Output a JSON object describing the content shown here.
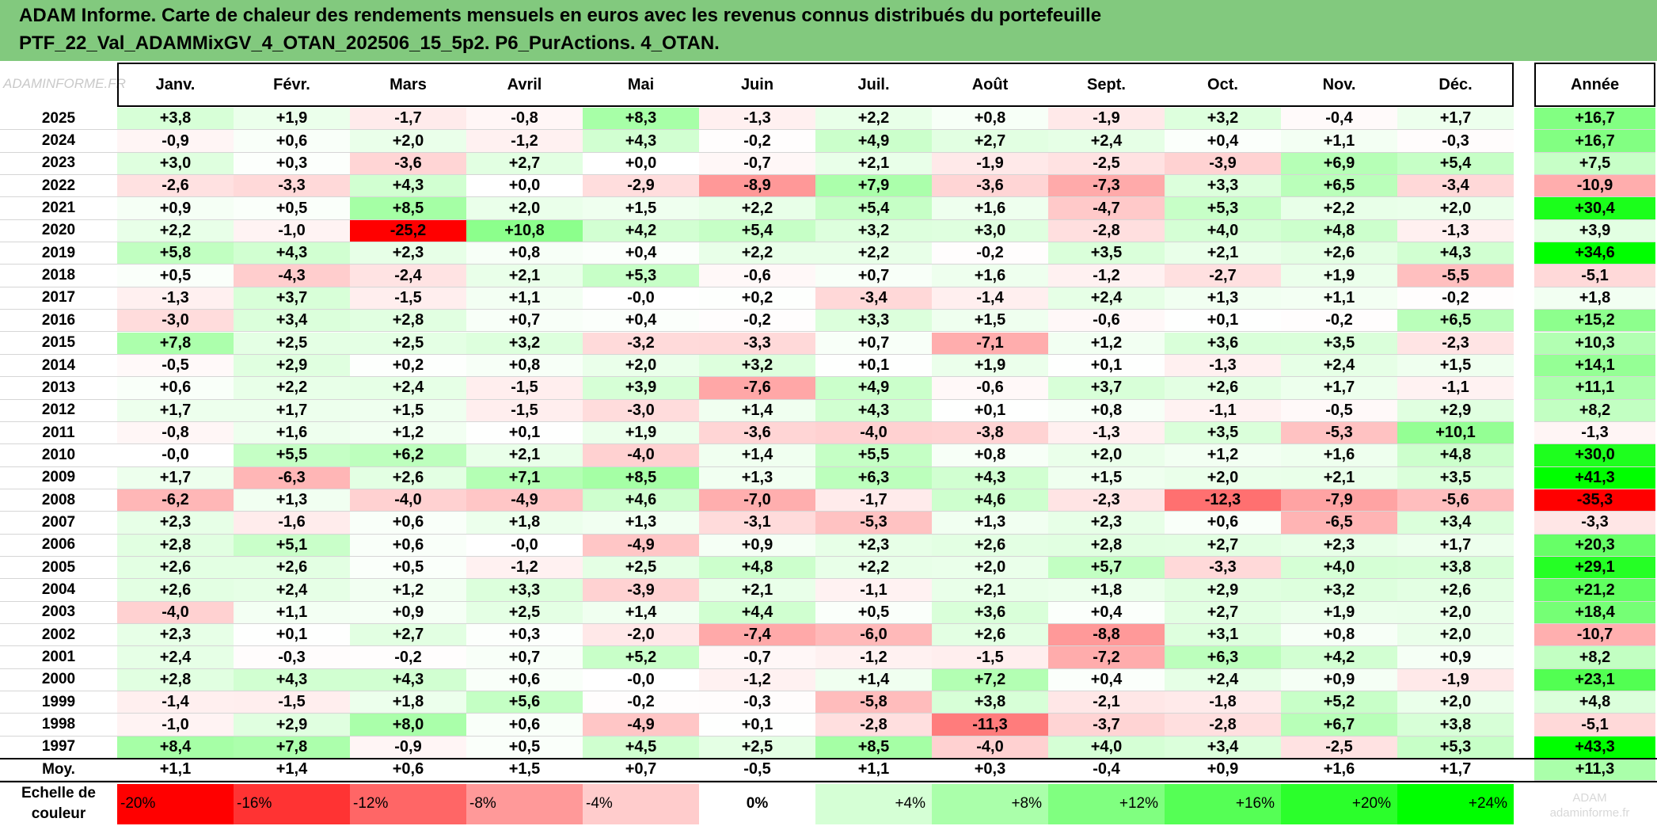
{
  "title": {
    "line1": "ADAM Informe. Carte de chaleur des rendements mensuels en euros avec les revenus connus distribués du portefeuille",
    "line2": "PTF_22_Val_ADAMMixGV_4_OTAN_202506_15_5p2. P6_PurActions. 4_OTAN."
  },
  "watermark": "ADAMINFORME.FR",
  "watermark2": "ADAM\nadaminforme.fr",
  "chart_data": {
    "type": "heatmap",
    "title": "ADAM Informe. Carte de chaleur des rendements mensuels en euros avec les revenus connus distribués du portefeuille PTF_22_Val_ADAMMixGV_4_OTAN_202506_15_5p2. P6_PurActions. 4_OTAN.",
    "columns": [
      "Janv.",
      "Févr.",
      "Mars",
      "Avril",
      "Mai",
      "Juin",
      "Juil.",
      "Août",
      "Sept.",
      "Oct.",
      "Nov.",
      "Déc."
    ],
    "annual_column": "Année",
    "rows": [
      {
        "year": "2025",
        "values": [
          "+3,8",
          "+1,9",
          "-1,7",
          "-0,8",
          "+8,3",
          "-1,3",
          "+2,2",
          "+0,8",
          "-1,9",
          "+3,2",
          "-0,4",
          "+1,7"
        ],
        "annual": "+16,7"
      },
      {
        "year": "2024",
        "values": [
          "-0,9",
          "+0,6",
          "+2,0",
          "-1,2",
          "+4,3",
          "-0,2",
          "+4,9",
          "+2,7",
          "+2,4",
          "+0,4",
          "+1,1",
          "-0,3"
        ],
        "annual": "+16,7"
      },
      {
        "year": "2023",
        "values": [
          "+3,0",
          "+0,3",
          "-3,6",
          "+2,7",
          "+0,0",
          "-0,7",
          "+2,1",
          "-1,9",
          "-2,5",
          "-3,9",
          "+6,9",
          "+5,4"
        ],
        "annual": "+7,5"
      },
      {
        "year": "2022",
        "values": [
          "-2,6",
          "-3,3",
          "+4,3",
          "+0,0",
          "-2,9",
          "-8,9",
          "+7,9",
          "-3,6",
          "-7,3",
          "+3,3",
          "+6,5",
          "-3,4"
        ],
        "annual": "-10,9"
      },
      {
        "year": "2021",
        "values": [
          "+0,9",
          "+0,5",
          "+8,5",
          "+2,0",
          "+1,5",
          "+2,2",
          "+5,4",
          "+1,6",
          "-4,7",
          "+5,3",
          "+2,2",
          "+2,0"
        ],
        "annual": "+30,4"
      },
      {
        "year": "2020",
        "values": [
          "+2,2",
          "-1,0",
          "-25,2",
          "+10,8",
          "+4,2",
          "+5,4",
          "+3,2",
          "+3,0",
          "-2,8",
          "+4,0",
          "+4,8",
          "-1,3"
        ],
        "annual": "+3,9"
      },
      {
        "year": "2019",
        "values": [
          "+5,8",
          "+4,3",
          "+2,3",
          "+0,8",
          "+0,4",
          "+2,2",
          "+2,2",
          "-0,2",
          "+3,5",
          "+2,1",
          "+2,6",
          "+4,3"
        ],
        "annual": "+34,6"
      },
      {
        "year": "2018",
        "values": [
          "+0,5",
          "-4,3",
          "-2,4",
          "+2,1",
          "+5,3",
          "-0,6",
          "+0,7",
          "+1,6",
          "-1,2",
          "-2,7",
          "+1,9",
          "-5,5"
        ],
        "annual": "-5,1"
      },
      {
        "year": "2017",
        "values": [
          "-1,3",
          "+3,7",
          "-1,5",
          "+1,1",
          "-0,0",
          "+0,2",
          "-3,4",
          "-1,4",
          "+2,4",
          "+1,3",
          "+1,1",
          "-0,2"
        ],
        "annual": "+1,8"
      },
      {
        "year": "2016",
        "values": [
          "-3,0",
          "+3,4",
          "+2,8",
          "+0,7",
          "+0,4",
          "-0,2",
          "+3,3",
          "+1,5",
          "-0,6",
          "+0,1",
          "-0,2",
          "+6,5"
        ],
        "annual": "+15,2"
      },
      {
        "year": "2015",
        "values": [
          "+7,8",
          "+2,5",
          "+2,5",
          "+3,2",
          "-3,2",
          "-3,3",
          "+0,7",
          "-7,1",
          "+1,2",
          "+3,6",
          "+3,5",
          "-2,3"
        ],
        "annual": "+10,3"
      },
      {
        "year": "2014",
        "values": [
          "-0,5",
          "+2,9",
          "+0,2",
          "+0,8",
          "+2,0",
          "+3,2",
          "+0,1",
          "+1,9",
          "+0,1",
          "-1,3",
          "+2,4",
          "+1,5"
        ],
        "annual": "+14,1"
      },
      {
        "year": "2013",
        "values": [
          "+0,6",
          "+2,2",
          "+2,4",
          "-1,5",
          "+3,9",
          "-7,6",
          "+4,9",
          "-0,6",
          "+3,7",
          "+2,6",
          "+1,7",
          "-1,1"
        ],
        "annual": "+11,1"
      },
      {
        "year": "2012",
        "values": [
          "+1,7",
          "+1,7",
          "+1,5",
          "-1,5",
          "-3,0",
          "+1,4",
          "+4,3",
          "+0,1",
          "+0,8",
          "-1,1",
          "-0,5",
          "+2,9"
        ],
        "annual": "+8,2"
      },
      {
        "year": "2011",
        "values": [
          "-0,8",
          "+1,6",
          "+1,2",
          "+0,1",
          "+1,9",
          "-3,6",
          "-4,0",
          "-3,8",
          "-1,3",
          "+3,5",
          "-5,3",
          "+10,1"
        ],
        "annual": "-1,3"
      },
      {
        "year": "2010",
        "values": [
          "-0,0",
          "+5,5",
          "+6,2",
          "+2,1",
          "-4,0",
          "+1,4",
          "+5,5",
          "+0,8",
          "+2,0",
          "+1,2",
          "+1,6",
          "+4,8"
        ],
        "annual": "+30,0"
      },
      {
        "year": "2009",
        "values": [
          "+1,7",
          "-6,3",
          "+2,6",
          "+7,1",
          "+8,5",
          "+1,3",
          "+6,3",
          "+4,3",
          "+1,5",
          "+2,0",
          "+2,1",
          "+3,5"
        ],
        "annual": "+41,3"
      },
      {
        "year": "2008",
        "values": [
          "-6,2",
          "+1,3",
          "-4,0",
          "-4,9",
          "+4,6",
          "-7,0",
          "-1,7",
          "+4,6",
          "-2,3",
          "-12,3",
          "-7,9",
          "-5,6"
        ],
        "annual": "-35,3"
      },
      {
        "year": "2007",
        "values": [
          "+2,3",
          "-1,6",
          "+0,6",
          "+1,8",
          "+1,3",
          "-3,1",
          "-5,3",
          "+1,3",
          "+2,3",
          "+0,6",
          "-6,5",
          "+3,4"
        ],
        "annual": "-3,3"
      },
      {
        "year": "2006",
        "values": [
          "+2,8",
          "+5,1",
          "+0,6",
          "-0,0",
          "-4,9",
          "+0,9",
          "+2,3",
          "+2,6",
          "+2,8",
          "+2,7",
          "+2,3",
          "+1,7"
        ],
        "annual": "+20,3"
      },
      {
        "year": "2005",
        "values": [
          "+2,6",
          "+2,6",
          "+0,5",
          "-1,2",
          "+2,5",
          "+4,8",
          "+2,2",
          "+2,0",
          "+5,7",
          "-3,3",
          "+4,0",
          "+3,8"
        ],
        "annual": "+29,1"
      },
      {
        "year": "2004",
        "values": [
          "+2,6",
          "+2,4",
          "+1,2",
          "+3,3",
          "-3,9",
          "+2,1",
          "-1,1",
          "+2,1",
          "+1,8",
          "+2,9",
          "+3,2",
          "+2,6"
        ],
        "annual": "+21,2"
      },
      {
        "year": "2003",
        "values": [
          "-4,0",
          "+1,1",
          "+0,9",
          "+2,5",
          "+1,4",
          "+4,4",
          "+0,5",
          "+3,6",
          "+0,4",
          "+2,7",
          "+1,9",
          "+2,0"
        ],
        "annual": "+18,4"
      },
      {
        "year": "2002",
        "values": [
          "+2,3",
          "+0,1",
          "+2,7",
          "+0,3",
          "-2,0",
          "-7,4",
          "-6,0",
          "+2,6",
          "-8,8",
          "+3,1",
          "+0,8",
          "+2,0"
        ],
        "annual": "-10,7"
      },
      {
        "year": "2001",
        "values": [
          "+2,4",
          "-0,3",
          "-0,2",
          "+0,7",
          "+5,2",
          "-0,7",
          "-1,2",
          "-1,5",
          "-7,2",
          "+6,3",
          "+4,2",
          "+0,9"
        ],
        "annual": "+8,2"
      },
      {
        "year": "2000",
        "values": [
          "+2,8",
          "+4,3",
          "+4,3",
          "+0,6",
          "-0,0",
          "-1,2",
          "+1,4",
          "+7,2",
          "+0,4",
          "+2,4",
          "+0,9",
          "-1,9"
        ],
        "annual": "+23,1"
      },
      {
        "year": "1999",
        "values": [
          "-1,4",
          "-1,5",
          "+1,8",
          "+5,6",
          "-0,2",
          "-0,3",
          "-5,8",
          "+3,8",
          "-2,1",
          "-1,8",
          "+5,2",
          "+2,0"
        ],
        "annual": "+4,8"
      },
      {
        "year": "1998",
        "values": [
          "-1,0",
          "+2,9",
          "+8,0",
          "+0,6",
          "-4,9",
          "+0,1",
          "-2,8",
          "-11,3",
          "-3,7",
          "-2,8",
          "+6,7",
          "+3,8"
        ],
        "annual": "-5,1"
      },
      {
        "year": "1997",
        "values": [
          "+8,4",
          "+7,8",
          "-0,9",
          "+0,5",
          "+4,5",
          "+2,5",
          "+8,5",
          "-4,0",
          "+4,0",
          "+3,4",
          "-2,5",
          "+5,3"
        ],
        "annual": "+43,3"
      }
    ],
    "average": {
      "label": "Moy.",
      "values": [
        "+1,1",
        "+1,4",
        "+0,6",
        "+1,5",
        "+0,7",
        "-0,5",
        "+1,1",
        "+0,3",
        "-0,4",
        "+0,9",
        "+1,6",
        "+1,7"
      ],
      "annual": "+11,3"
    },
    "scale": {
      "label": "Echelle de couleur",
      "steps": [
        "-20%",
        "-16%",
        "-12%",
        "-8%",
        "-4%",
        "0%",
        "+4%",
        "+8%",
        "+12%",
        "+16%",
        "+20%",
        "+24%"
      ]
    },
    "colors": {
      "negative_max": "#ff0000",
      "neutral": "#ffffff",
      "positive_max": "#00ff00",
      "header_band": "#82c97e"
    }
  }
}
